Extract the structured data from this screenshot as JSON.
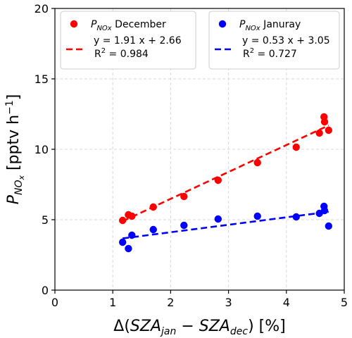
{
  "chart_data": {
    "type": "scatter",
    "xlabel": "Δ(SZA_jan − SZA_dec) [%]",
    "ylabel": "P_NOx [pptv h⁻¹]",
    "xlim": [
      0,
      5
    ],
    "ylim": [
      0,
      20
    ],
    "xticks": [
      0,
      1,
      2,
      3,
      4,
      5
    ],
    "yticks": [
      0,
      5,
      10,
      15,
      20
    ],
    "grid": true,
    "legend_placement": "top",
    "series": [
      {
        "name": "P_NOx December",
        "legend_base": "P",
        "legend_sub": "NOx",
        "legend_suffix": " December",
        "color": "#ff0000",
        "points": [
          {
            "x": 1.17,
            "y": 4.95
          },
          {
            "x": 1.27,
            "y": 5.35
          },
          {
            "x": 1.33,
            "y": 5.25
          },
          {
            "x": 1.7,
            "y": 5.9
          },
          {
            "x": 2.23,
            "y": 6.65
          },
          {
            "x": 2.82,
            "y": 7.8
          },
          {
            "x": 3.5,
            "y": 9.05
          },
          {
            "x": 4.17,
            "y": 10.15
          },
          {
            "x": 4.57,
            "y": 11.15
          },
          {
            "x": 4.65,
            "y": 12.3
          },
          {
            "x": 4.66,
            "y": 11.95
          },
          {
            "x": 4.73,
            "y": 11.35
          }
        ],
        "fit": {
          "slope": 1.91,
          "intercept": 2.66,
          "x_range": [
            1.17,
            4.73
          ],
          "equation": "y = 1.91 x + 2.66",
          "r2_label": "R",
          "r2_value": " = 0.984"
        }
      },
      {
        "name": "P_NOx Januray",
        "legend_base": "P",
        "legend_sub": "NOx",
        "legend_suffix": " Januray",
        "color": "#0000ff",
        "points": [
          {
            "x": 1.17,
            "y": 3.4
          },
          {
            "x": 1.27,
            "y": 2.95
          },
          {
            "x": 1.33,
            "y": 3.9
          },
          {
            "x": 1.7,
            "y": 4.3
          },
          {
            "x": 2.23,
            "y": 4.6
          },
          {
            "x": 2.82,
            "y": 5.05
          },
          {
            "x": 3.5,
            "y": 5.25
          },
          {
            "x": 4.17,
            "y": 5.2
          },
          {
            "x": 4.57,
            "y": 5.45
          },
          {
            "x": 4.65,
            "y": 5.95
          },
          {
            "x": 4.66,
            "y": 5.65
          },
          {
            "x": 4.73,
            "y": 4.55
          }
        ],
        "fit": {
          "slope": 0.53,
          "intercept": 3.05,
          "x_range": [
            1.17,
            4.73
          ],
          "equation": "y = 0.53 x + 3.05",
          "r2_label": "R",
          "r2_value": " = 0.727"
        }
      }
    ]
  }
}
